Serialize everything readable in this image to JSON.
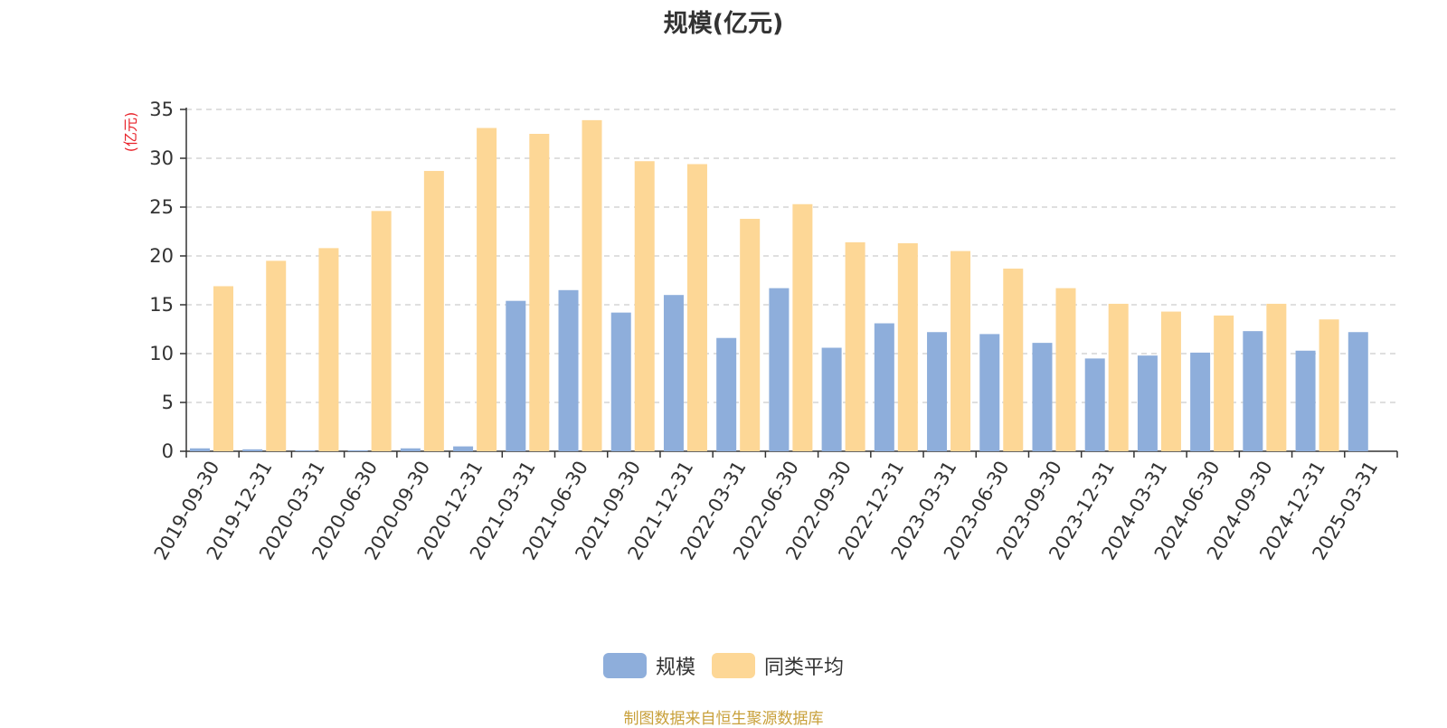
{
  "chart_data": {
    "type": "bar",
    "title": "规模(亿元)",
    "ylabel": "(亿元)",
    "ylim": [
      0,
      35
    ],
    "yticks": [
      0,
      5,
      10,
      15,
      20,
      25,
      30,
      35
    ],
    "grid": true,
    "legend_position": "bottom",
    "categories": [
      "2019-09-30",
      "2019-12-31",
      "2020-03-31",
      "2020-06-30",
      "2020-09-30",
      "2020-12-31",
      "2021-03-31",
      "2021-06-30",
      "2021-09-30",
      "2021-12-31",
      "2022-03-31",
      "2022-06-30",
      "2022-09-30",
      "2022-12-31",
      "2023-03-31",
      "2023-06-30",
      "2023-09-30",
      "2023-12-31",
      "2024-03-31",
      "2024-06-30",
      "2024-09-30",
      "2024-12-31",
      "2025-03-31"
    ],
    "series": [
      {
        "name": "规模",
        "color": "#8eaedb",
        "values": [
          0.3,
          0.2,
          0.1,
          0.1,
          0.3,
          0.5,
          15.4,
          16.5,
          14.2,
          16.0,
          11.6,
          16.7,
          10.6,
          13.1,
          12.2,
          12.0,
          11.1,
          9.5,
          9.8,
          10.1,
          12.3,
          10.3,
          12.2
        ]
      },
      {
        "name": "同类平均",
        "color": "#fdd796",
        "values": [
          16.9,
          19.5,
          20.8,
          24.6,
          28.7,
          33.1,
          32.5,
          33.9,
          29.7,
          29.4,
          23.8,
          25.3,
          21.4,
          21.3,
          20.5,
          18.7,
          16.7,
          15.1,
          14.3,
          13.9,
          15.1,
          13.5,
          null
        ]
      }
    ]
  },
  "source": {
    "text": "制图数据来自恒生聚源数据库",
    "color": "#c8a03a"
  },
  "ylabel_color": "#e8232a"
}
